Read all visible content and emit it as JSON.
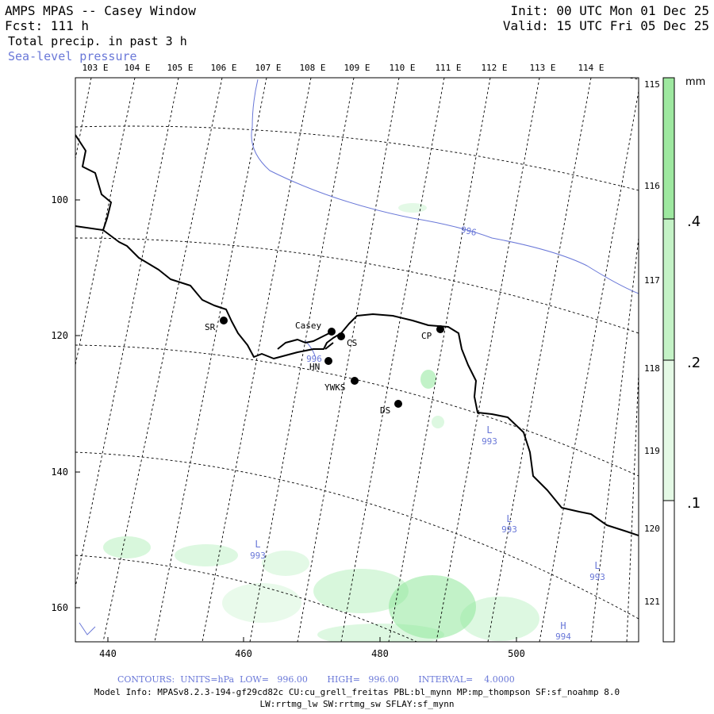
{
  "header": {
    "title": "AMPS MPAS -- Casey Window",
    "fcst": "Fcst: 111 h",
    "field1": "Total precip. in past 3 h",
    "field2": "Sea-level pressure",
    "init": "Init: 00 UTC Mon 01 Dec 25",
    "valid": "Valid: 15 UTC Fri 05 Dec 25"
  },
  "map": {
    "top_lon_labels": [
      "103 E",
      "104 E",
      "105 E",
      "106 E",
      "107 E",
      "108 E",
      "109 E",
      "110 E",
      "111 E",
      "112 E",
      "113 E",
      "114 E"
    ],
    "right_lon_labels": [
      "115 E",
      "116 E",
      "117 E",
      "118 E",
      "119 E",
      "120 E",
      "121 E"
    ],
    "x_ticks": [
      "440",
      "460",
      "480",
      "500"
    ],
    "y_ticks": [
      "100",
      "120",
      "140",
      "160"
    ],
    "stations": [
      {
        "name": "SR"
      },
      {
        "name": "Casey"
      },
      {
        "name": "CS"
      },
      {
        "name": "HN"
      },
      {
        "name": "YWKS"
      },
      {
        "name": "DS"
      },
      {
        "name": "CP"
      }
    ],
    "contour_labels": [
      "996",
      "996"
    ],
    "pressure_centers": [
      {
        "symbol": "L",
        "value": "993"
      },
      {
        "symbol": "L",
        "value": "993"
      },
      {
        "symbol": "L",
        "value": "993"
      },
      {
        "symbol": "L",
        "value": "993"
      },
      {
        "symbol": "H",
        "value": "994"
      }
    ],
    "colors": {
      "coast": "#000000",
      "graticule": "#000000",
      "contour": "#6a78d8",
      "precip": "#8fe89a"
    }
  },
  "colorbar": {
    "unit": "mm",
    "ticks": [
      ".4",
      ".2",
      ".1"
    ]
  },
  "footer": {
    "contours": "CONTOURS:  UNITS=hPa  LOW=   996.00       HIGH=   996.00       INTERVAL=    4.0000",
    "model_info": "Model Info: MPASv8.2.3-194-gf29cd82c CU:cu_grell_freitas PBL:bl_mynn MP:mp_thompson SF:sf_noahmp 8.0",
    "model_info2": "LW:rrtmg_lw SW:rrtmg_sw SFLAY:sf_mynn"
  }
}
